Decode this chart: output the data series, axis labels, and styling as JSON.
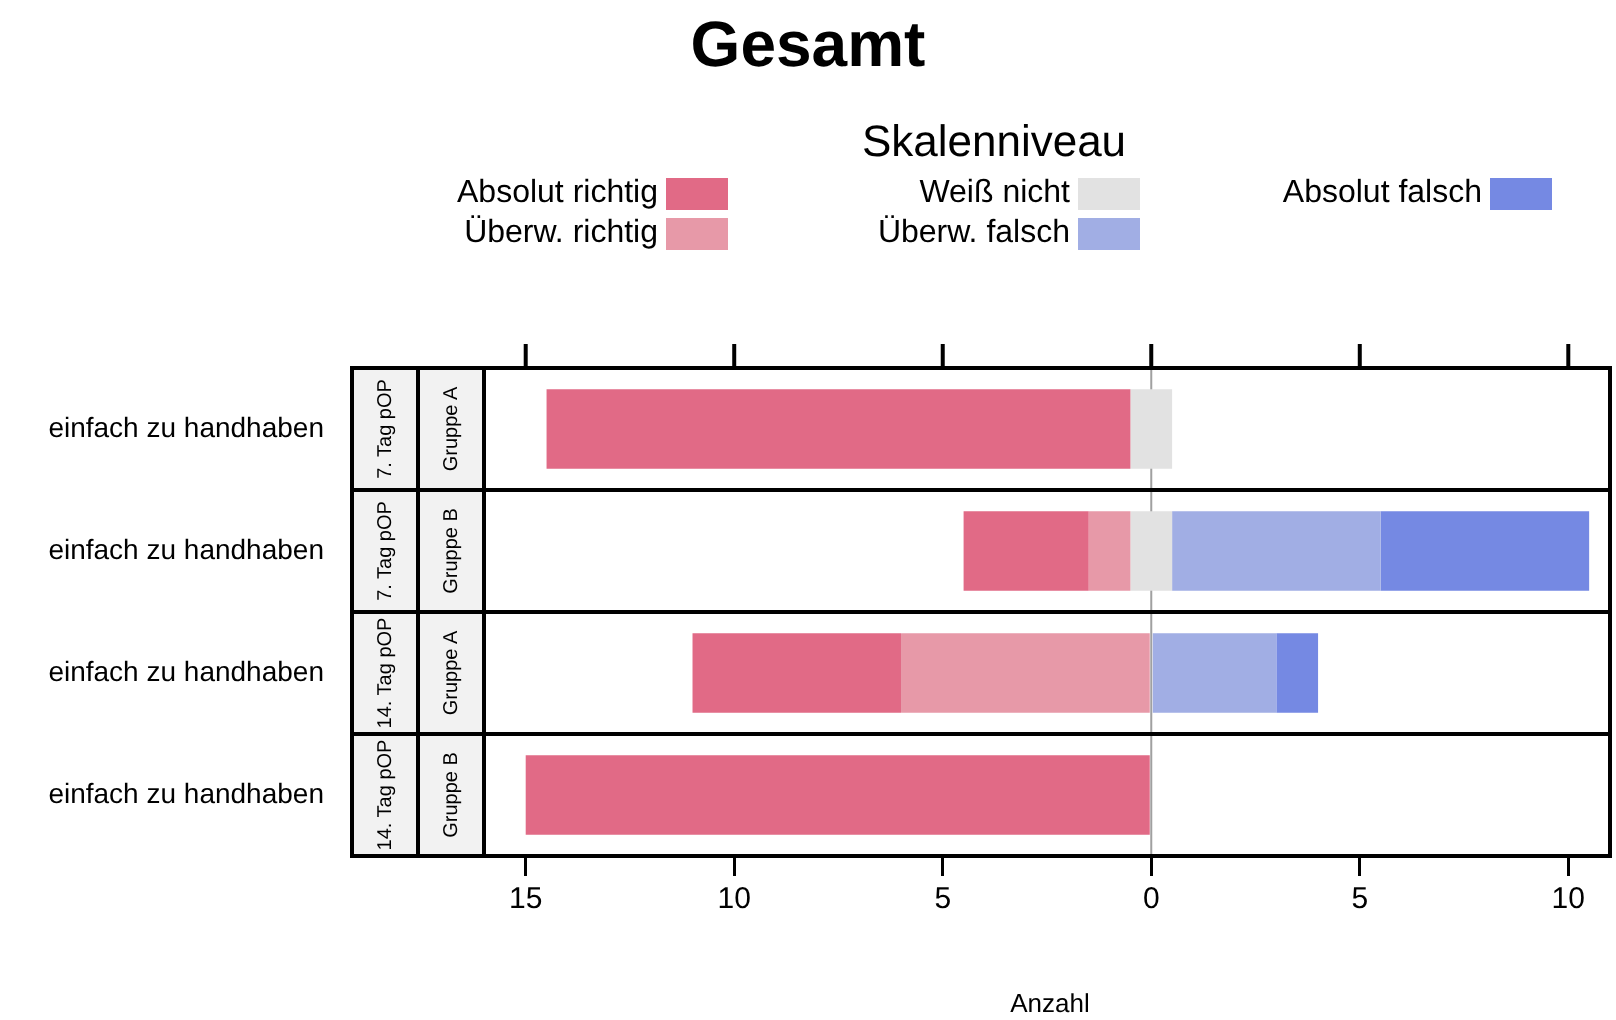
{
  "chart_data": {
    "type": "bar",
    "orientation": "horizontal",
    "title": "Gesamt",
    "legend_title": "Skalenniveau",
    "xlabel": "Anzahl",
    "categories": [
      "einfach zu handhaben",
      "einfach zu handhaben",
      "einfach zu handhaben",
      "einfach zu handhaben"
    ],
    "annotations": [
      "7. Tag pOP",
      "Gruppe A",
      "7. Tag pOP",
      "Gruppe B",
      "14. Tag pOP",
      "Gruppe A",
      "14. Tag pOP",
      "Gruppe B"
    ],
    "series": [
      {
        "name": "Absolut richtig",
        "color": "#e16a86",
        "base": [
          -0.5,
          -1.5,
          -6,
          0
        ],
        "values": [
          -14,
          -3,
          -5,
          -15
        ]
      },
      {
        "name": "Überw. richtig",
        "color": "#e799a8",
        "base": [
          null,
          -0.5,
          0,
          null
        ],
        "values": [
          null,
          -1,
          -6,
          null
        ]
      },
      {
        "name": "Weiß nicht",
        "color": "#e2e2e2",
        "base": [
          -0.5,
          -0.5,
          null,
          null
        ],
        "values": [
          1,
          1,
          null,
          null
        ]
      },
      {
        "name": "Überw. falsch",
        "color": "#a1aee4",
        "base": [
          null,
          0.5,
          0,
          null
        ],
        "values": [
          null,
          5,
          3,
          null
        ]
      },
      {
        "name": "Absolut falsch",
        "color": "#7589e3",
        "base": [
          null,
          5.5,
          3,
          null
        ],
        "values": [
          null,
          5,
          1,
          null
        ]
      }
    ],
    "xlim": [
      -16,
      11
    ],
    "xticks": [
      {
        "value": -15,
        "label": "15"
      },
      {
        "value": -10,
        "label": "10"
      },
      {
        "value": -5,
        "label": "5"
      },
      0,
      5,
      10
    ],
    "ref_lines": [
      {
        "axis": "x",
        "value": 0,
        "color": "#a0a0a0"
      }
    ],
    "grid": false,
    "legend": "top"
  }
}
